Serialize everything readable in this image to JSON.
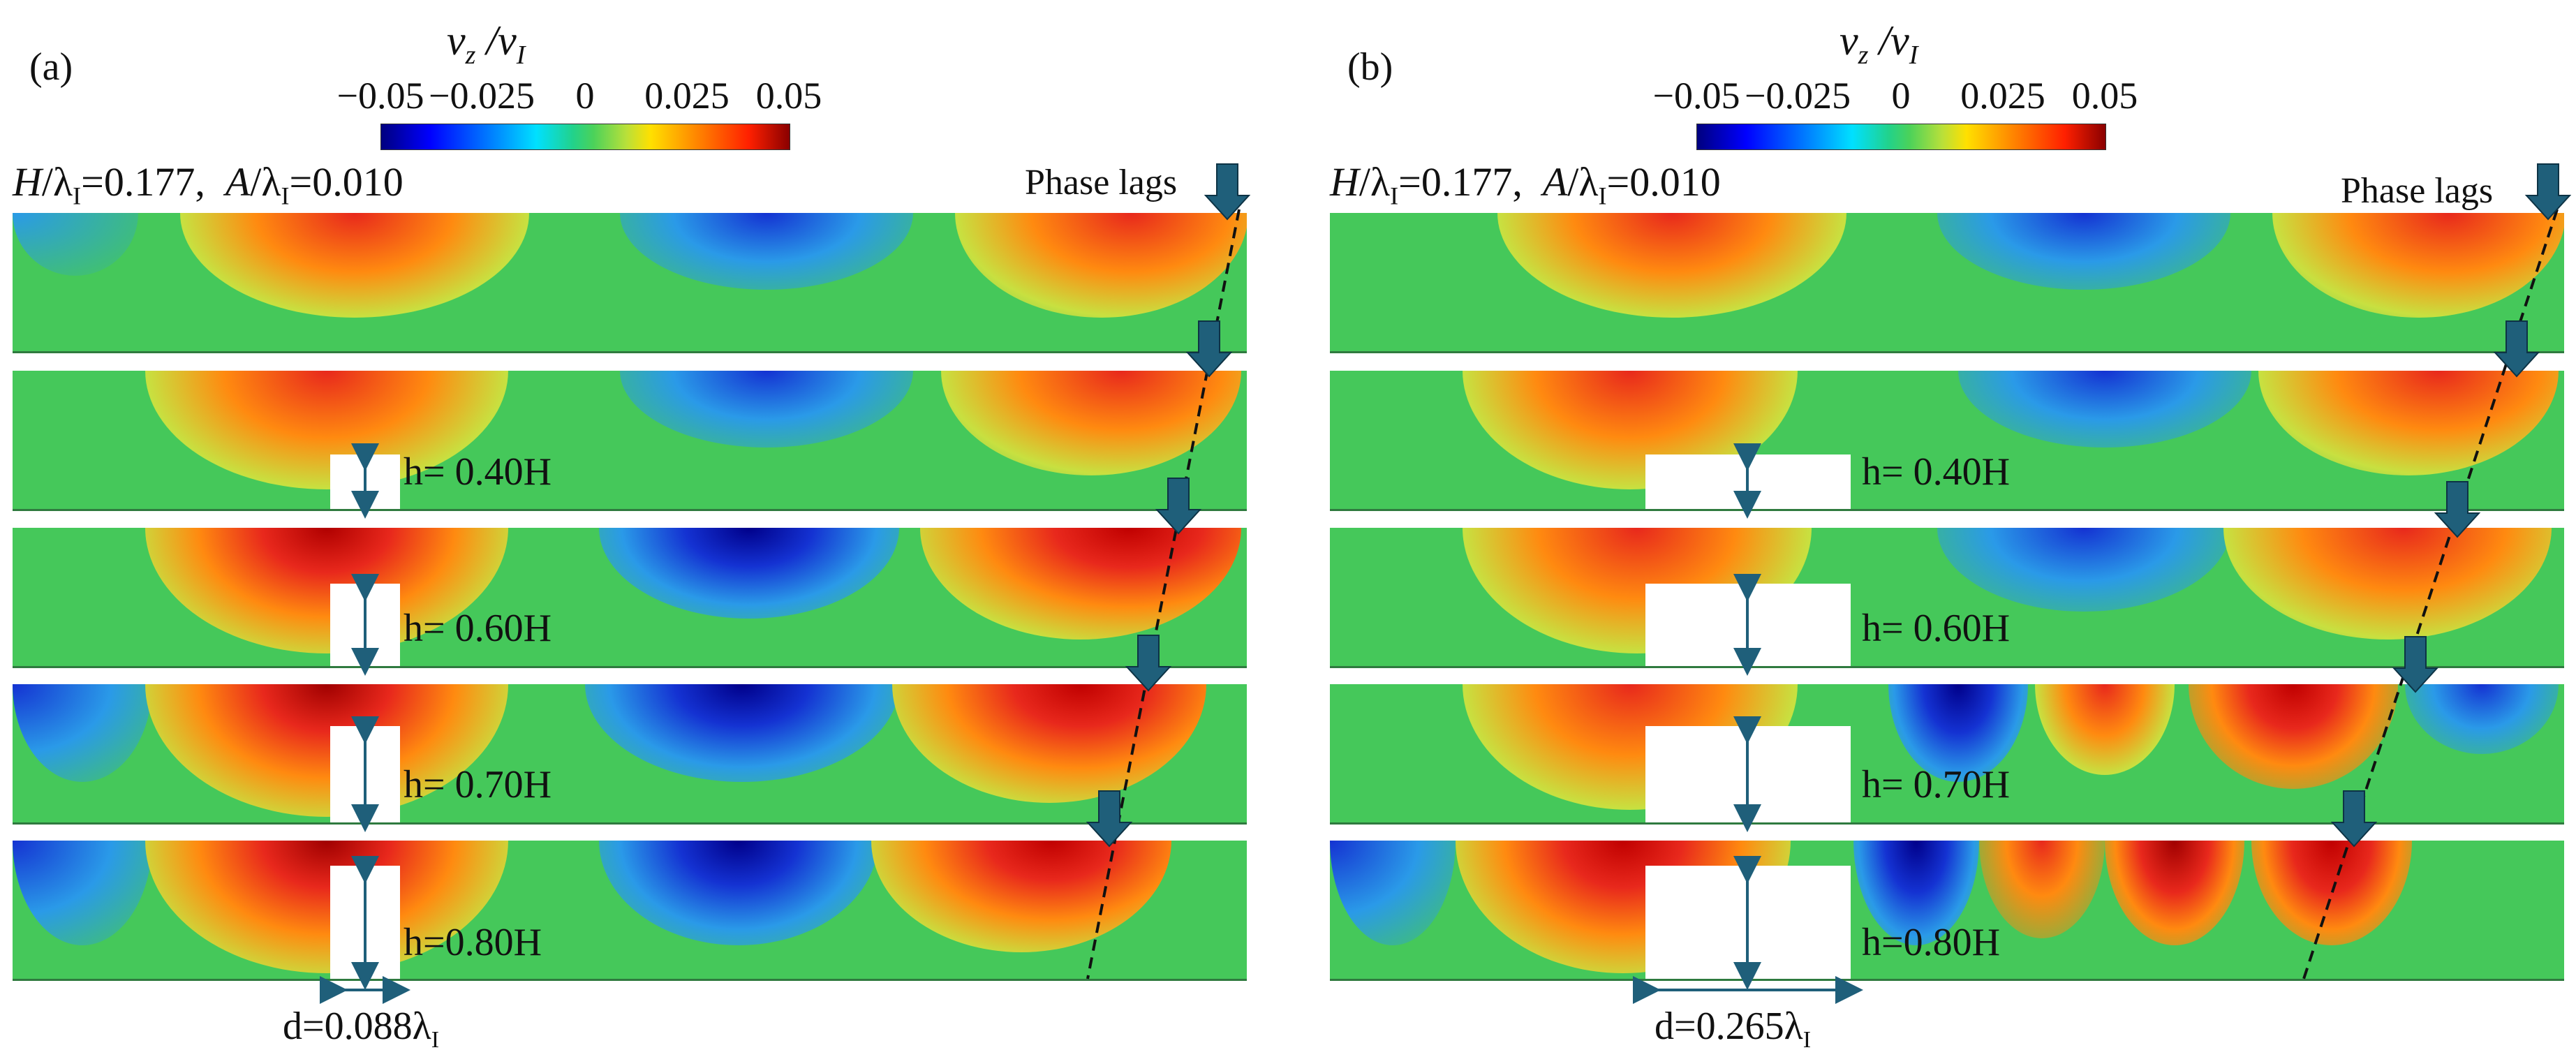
{
  "panels": [
    {
      "label": "(a)",
      "colorbar": {
        "title": "v_z / v_I",
        "ticks": [
          "−0.05",
          "−0.025",
          "0",
          "0.025",
          "0.05"
        ]
      },
      "params": {
        "h_ratio": "=0.177,",
        "a_ratio": "=0.010"
      },
      "phase_label": "Phase lags",
      "rows": [
        "h= 0.40H",
        "h= 0.60H",
        "h= 0.70H",
        "h=0.80H"
      ],
      "width_label": {
        "text": "d=0.088λ",
        "sub": "I"
      }
    },
    {
      "label": "(b)",
      "colorbar": {
        "title": "v_z / v_I",
        "ticks": [
          "−0.05",
          "−0.025",
          "0",
          "0.025",
          "0.05"
        ]
      },
      "params": {
        "h_ratio": "=0.177,",
        "a_ratio": "=0.010"
      },
      "phase_label": "Phase lags",
      "rows": [
        "h= 0.40H",
        "h= 0.60H",
        "h= 0.70H",
        "h=0.80H"
      ],
      "width_label": {
        "text": "d=0.265λ",
        "sub": "I"
      }
    }
  ],
  "colors": {
    "arrow": "#1f5f7a",
    "neutral": "#45c85a",
    "positive": "#e8281c",
    "negative": "#1432d2"
  }
}
